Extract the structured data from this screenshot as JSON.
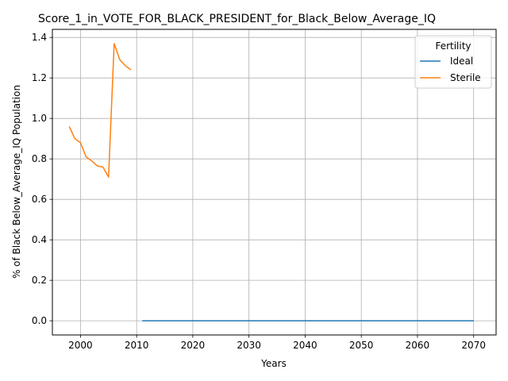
{
  "chart_data": {
    "type": "line",
    "title": "Score_1_in_VOTE_FOR_BLACK_PRESIDENT_for_Black_Below_Average_IQ",
    "xlabel": "Years",
    "ylabel": "% of Black Below_Average_IQ Population",
    "xlim": [
      1995,
      2074
    ],
    "ylim": [
      -0.07,
      1.44
    ],
    "x_ticks": [
      2000,
      2010,
      2020,
      2030,
      2040,
      2050,
      2060,
      2070
    ],
    "y_ticks": [
      0.0,
      0.2,
      0.4,
      0.6,
      0.8,
      1.0,
      1.2,
      1.4
    ],
    "y_tick_labels": [
      "0.0",
      "0.2",
      "0.4",
      "0.6",
      "0.8",
      "1.0",
      "1.2",
      "1.4"
    ],
    "grid": true,
    "legend": {
      "title": "Fertility",
      "position": "top-right"
    },
    "series": [
      {
        "name": "Ideal",
        "color": "#1f77b4",
        "x": [
          2011,
          2020,
          2030,
          2040,
          2050,
          2060,
          2070
        ],
        "y": [
          0,
          0,
          0,
          0,
          0,
          0,
          0
        ]
      },
      {
        "name": "Sterile",
        "color": "#ff7f0e",
        "x": [
          1998,
          1999,
          2000,
          2001,
          2002,
          2003,
          2004,
          2005,
          2006,
          2007,
          2008,
          2009
        ],
        "y": [
          0.96,
          0.9,
          0.88,
          0.81,
          0.79,
          0.765,
          0.76,
          0.71,
          1.37,
          1.29,
          1.26,
          1.24
        ]
      }
    ]
  }
}
